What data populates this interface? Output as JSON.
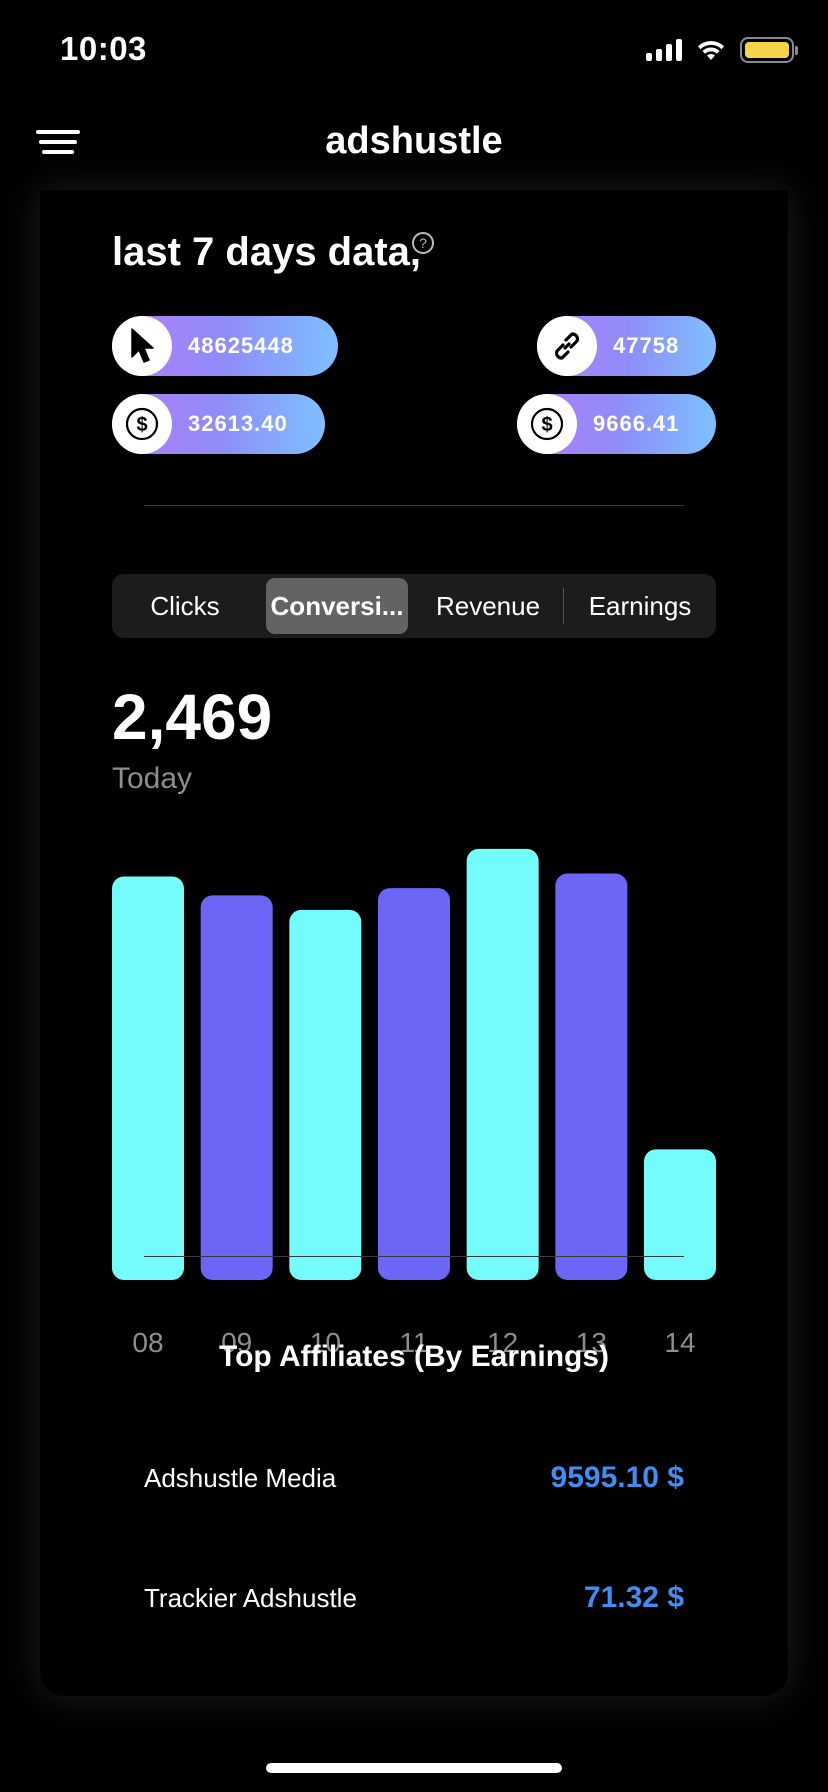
{
  "status_bar": {
    "time": "10:03"
  },
  "nav": {
    "title": "adshustle"
  },
  "summary": {
    "title": "last 7 days data,",
    "help_icon": "help-circle-icon",
    "gradient_colors": [
      "#b57bff",
      "#7ec0ff"
    ],
    "stats": [
      {
        "icon": "cursor-icon",
        "value": "48625448"
      },
      {
        "icon": "link-icon",
        "value": "47758"
      },
      {
        "icon": "dollar-icon",
        "value": "32613.40"
      },
      {
        "icon": "dollar-icon",
        "value": "9666.41"
      }
    ]
  },
  "segments": {
    "items": [
      "Clicks",
      "Conversi...",
      "Revenue",
      "Earnings"
    ],
    "selected_index": 1
  },
  "metric": {
    "value": "2,469",
    "label": "Today"
  },
  "chart_data": {
    "type": "bar",
    "categories": [
      "08",
      "09",
      "10",
      "11",
      "12",
      "13",
      "14"
    ],
    "values": [
      2780,
      2650,
      2550,
      2700,
      2970,
      2800,
      900
    ],
    "ylim": [
      0,
      3100
    ],
    "colors": [
      "#74fbfb",
      "#6b66f5"
    ],
    "grid": false,
    "xlabel": "",
    "ylabel": ""
  },
  "affiliates": {
    "title": "Top Affiliates (By Earnings)",
    "amount_color": "#3d8ef5",
    "rows": [
      {
        "name": "Adshustle Media",
        "amount": "9595.10 $"
      },
      {
        "name": "Trackier Adshustle",
        "amount": "71.32 $"
      }
    ]
  }
}
